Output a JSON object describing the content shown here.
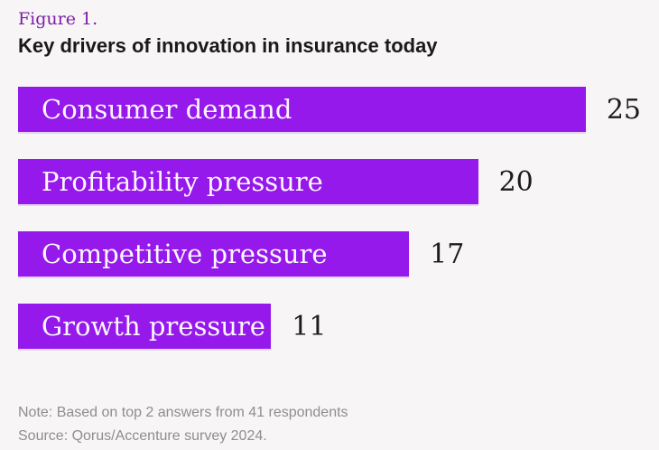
{
  "header": {
    "figure_label": "Figure 1.",
    "title": "Key drivers of innovation in insurance today"
  },
  "footer": {
    "note": "Note: Based on top 2 answers from 41 respondents",
    "source": "Source: Qorus/Accenture survey 2024."
  },
  "colors": {
    "bar": "#9619EB",
    "figure_label": "#7D1EA8",
    "title": "#1a1a1a",
    "bar_text": "#FBF7FF",
    "value": "#1c1c1c",
    "footer_text": "#8e8e8e",
    "background": "#f7f5f6"
  },
  "chart_data": {
    "type": "bar",
    "orientation": "horizontal",
    "title": "Key drivers of innovation in insurance today",
    "categories": [
      "Consumer demand",
      "Profitability pressure",
      "Competitive pressure",
      "Growth pressure"
    ],
    "values": [
      25,
      20,
      17,
      11
    ],
    "xlabel": "",
    "ylabel": "",
    "xlim": [
      0,
      25
    ],
    "grid": false,
    "legend": false,
    "category_labels_position": "inside-bar",
    "value_labels_position": "right-of-bar"
  }
}
